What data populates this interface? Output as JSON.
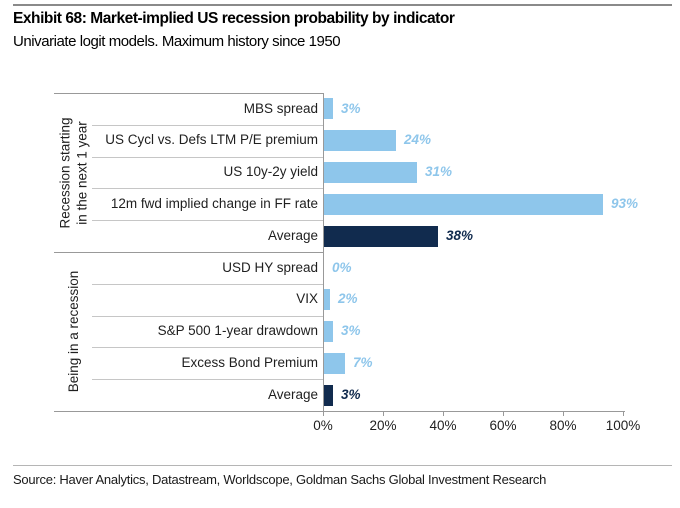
{
  "chart_data": {
    "type": "bar",
    "orientation": "horizontal",
    "title": "Exhibit 68: Market-implied US recession probability by indicator",
    "subtitle": "Univariate logit models. Maximum history since 1950",
    "xlabel": "",
    "ylabel": "",
    "xlim": [
      0,
      100
    ],
    "grid": false,
    "legend": false,
    "x_ticks": [
      {
        "value": 0,
        "label": "0%"
      },
      {
        "value": 20,
        "label": "20%"
      },
      {
        "value": 40,
        "label": "40%"
      },
      {
        "value": 60,
        "label": "60%"
      },
      {
        "value": 80,
        "label": "80%"
      },
      {
        "value": 100,
        "label": "100%"
      }
    ],
    "groups": [
      {
        "label_lines": [
          "Recession starting",
          "in the next 1 year"
        ],
        "rows": [
          {
            "category": "MBS spread",
            "value": 3,
            "label": "3%",
            "emphasis": false
          },
          {
            "category": "US Cycl vs. Defs LTM P/E premium",
            "value": 24,
            "label": "24%",
            "emphasis": false
          },
          {
            "category": "US 10y-2y yield",
            "value": 31,
            "label": "31%",
            "emphasis": false
          },
          {
            "category": "12m fwd implied change in FF rate",
            "value": 93,
            "label": "93%",
            "emphasis": false
          },
          {
            "category": "Average",
            "value": 38,
            "label": "38%",
            "emphasis": true
          }
        ]
      },
      {
        "label_lines": [
          "Being in a recession"
        ],
        "rows": [
          {
            "category": "USD HY spread",
            "value": 0,
            "label": "0%",
            "emphasis": false
          },
          {
            "category": "VIX",
            "value": 2,
            "label": "2%",
            "emphasis": false
          },
          {
            "category": "S&P 500 1-year drawdown",
            "value": 3,
            "label": "3%",
            "emphasis": false
          },
          {
            "category": "Excess Bond Premium",
            "value": 7,
            "label": "7%",
            "emphasis": false
          },
          {
            "category": "Average",
            "value": 3,
            "label": "3%",
            "emphasis": true
          }
        ]
      }
    ],
    "colors": {
      "bar": "#8EC6EB",
      "bar_emphasis": "#112B4E",
      "value_label": "#8EC6EB",
      "value_label_emphasis": "#112B4E",
      "axis_line": "#999999",
      "separator_line": "#c6c6c6"
    }
  },
  "footer": {
    "source": "Source: Haver Analytics, Datastream, Worldscope, Goldman Sachs Global Investment Research"
  }
}
